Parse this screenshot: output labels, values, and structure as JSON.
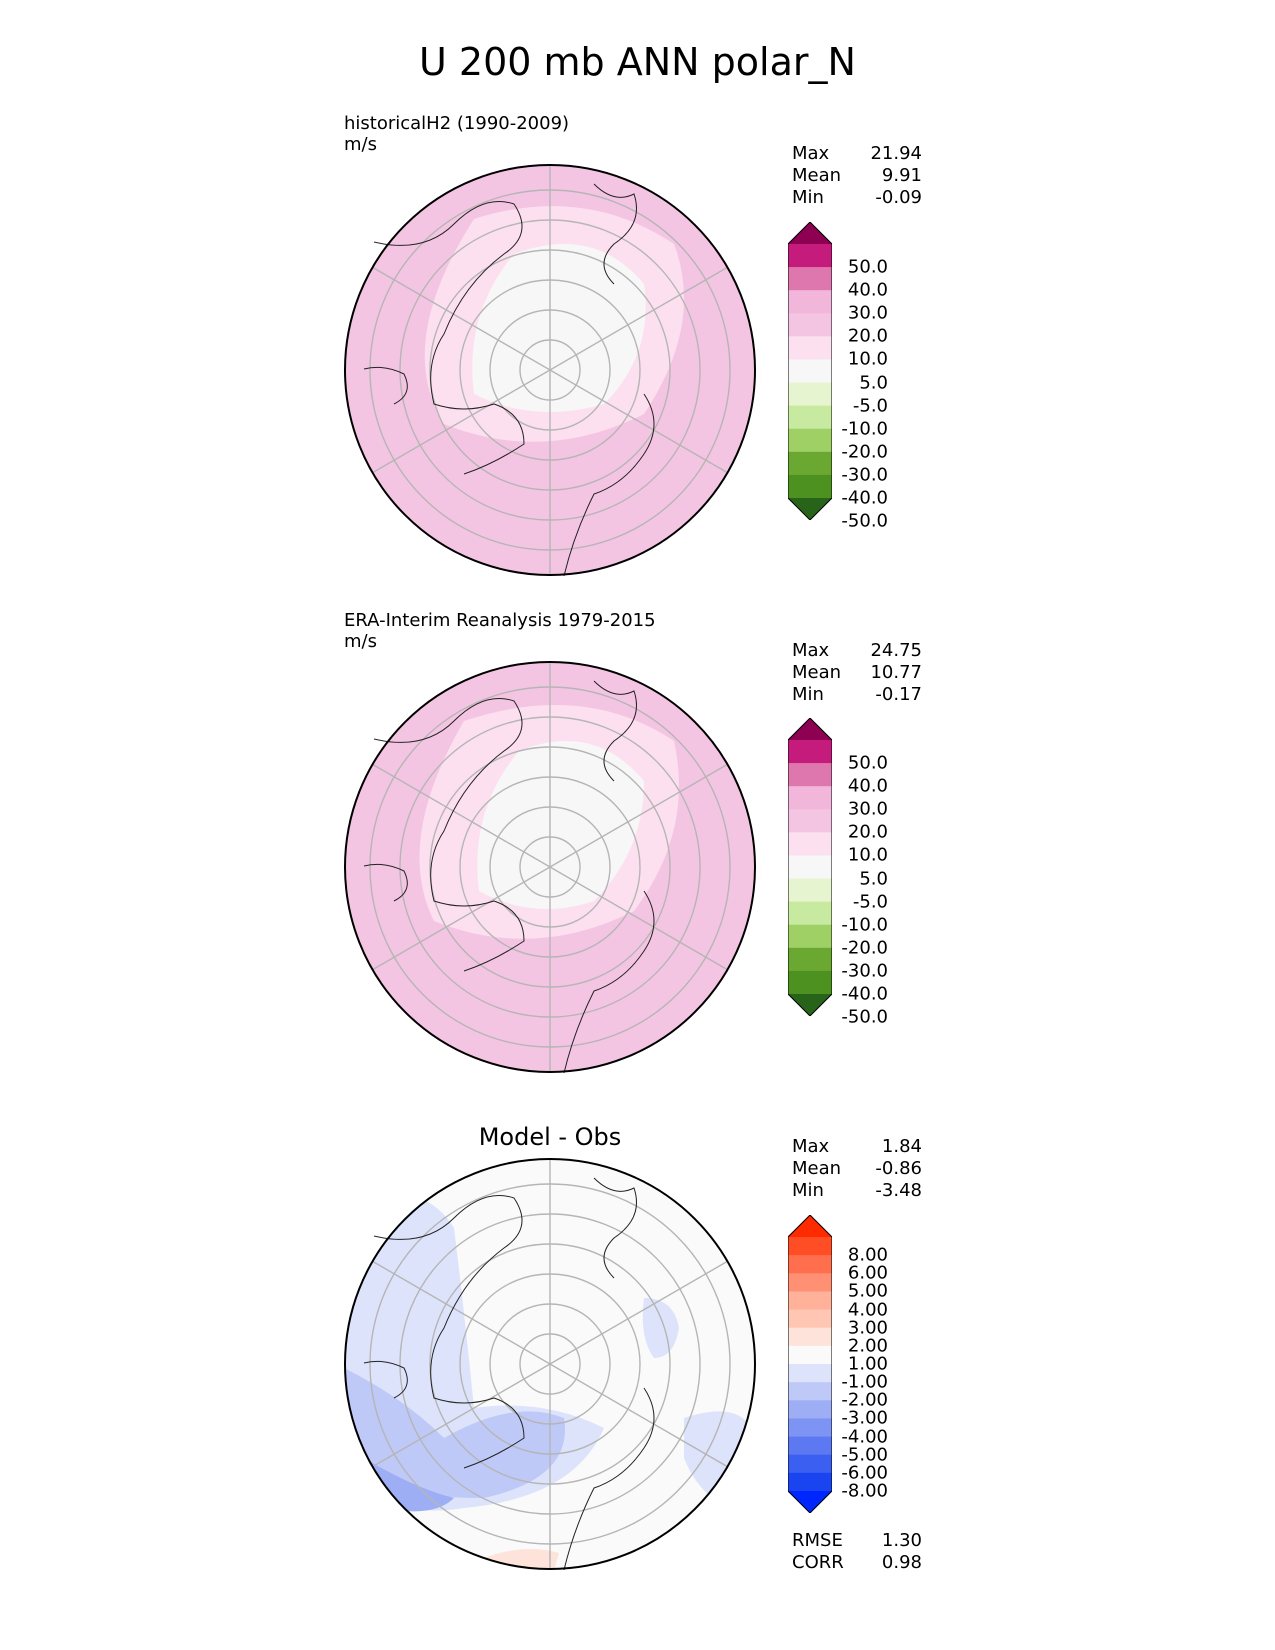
{
  "title": "U 200 mb ANN polar_N",
  "panels": [
    {
      "label": "historicalH2 (1990-2009)",
      "units": "m/s",
      "stats": [
        {
          "name": "Max",
          "value": "21.94"
        },
        {
          "name": "Mean",
          "value": "9.91"
        },
        {
          "name": "Min",
          "value": "-0.09"
        }
      ],
      "colorbar": {
        "labels": [
          "50.0",
          "40.0",
          "30.0",
          "20.0",
          "10.0",
          "5.0",
          "-5.0",
          "-10.0",
          "-20.0",
          "-30.0",
          "-40.0",
          "-50.0"
        ],
        "colors": [
          "#8e0152",
          "#c51b7d",
          "#de77ae",
          "#f1b6da",
          "#f4c5e2",
          "#fde0ef",
          "#f7f7f7",
          "#e6f5d0",
          "#c7e9a0",
          "#9fd065",
          "#6ba832",
          "#4d9221",
          "#276419"
        ]
      }
    },
    {
      "label": "ERA-Interim Reanalysis 1979-2015",
      "units": "m/s",
      "stats": [
        {
          "name": "Max",
          "value": "24.75"
        },
        {
          "name": "Mean",
          "value": "10.77"
        },
        {
          "name": "Min",
          "value": "-0.17"
        }
      ],
      "colorbar": {
        "labels": [
          "50.0",
          "40.0",
          "30.0",
          "20.0",
          "10.0",
          "5.0",
          "-5.0",
          "-10.0",
          "-20.0",
          "-30.0",
          "-40.0",
          "-50.0"
        ],
        "colors": [
          "#8e0152",
          "#c51b7d",
          "#de77ae",
          "#f1b6da",
          "#f4c5e2",
          "#fde0ef",
          "#f7f7f7",
          "#e6f5d0",
          "#c7e9a0",
          "#9fd065",
          "#6ba832",
          "#4d9221",
          "#276419"
        ]
      }
    },
    {
      "label": "Model - Obs",
      "stats": [
        {
          "name": "Max",
          "value": "1.84"
        },
        {
          "name": "Mean",
          "value": "-0.86"
        },
        {
          "name": "Min",
          "value": "-3.48"
        }
      ],
      "extra_stats": [
        {
          "name": "RMSE",
          "value": "1.30"
        },
        {
          "name": "CORR",
          "value": "0.98"
        }
      ],
      "colorbar": {
        "labels": [
          "8.00",
          "6.00",
          "5.00",
          "4.00",
          "3.00",
          "2.00",
          "1.00",
          "-1.00",
          "-2.00",
          "-3.00",
          "-4.00",
          "-5.00",
          "-6.00",
          "-8.00"
        ],
        "colors": [
          "#ff2b00",
          "#ff4d26",
          "#ff6e4d",
          "#ff9073",
          "#ffb199",
          "#ffc6b4",
          "#fde3da",
          "#fafafa",
          "#dde3fb",
          "#bfc9f7",
          "#9eaef5",
          "#7d94f4",
          "#5c79f2",
          "#3b5ff1",
          "#1a44ef",
          "#0026ff"
        ]
      }
    }
  ]
}
